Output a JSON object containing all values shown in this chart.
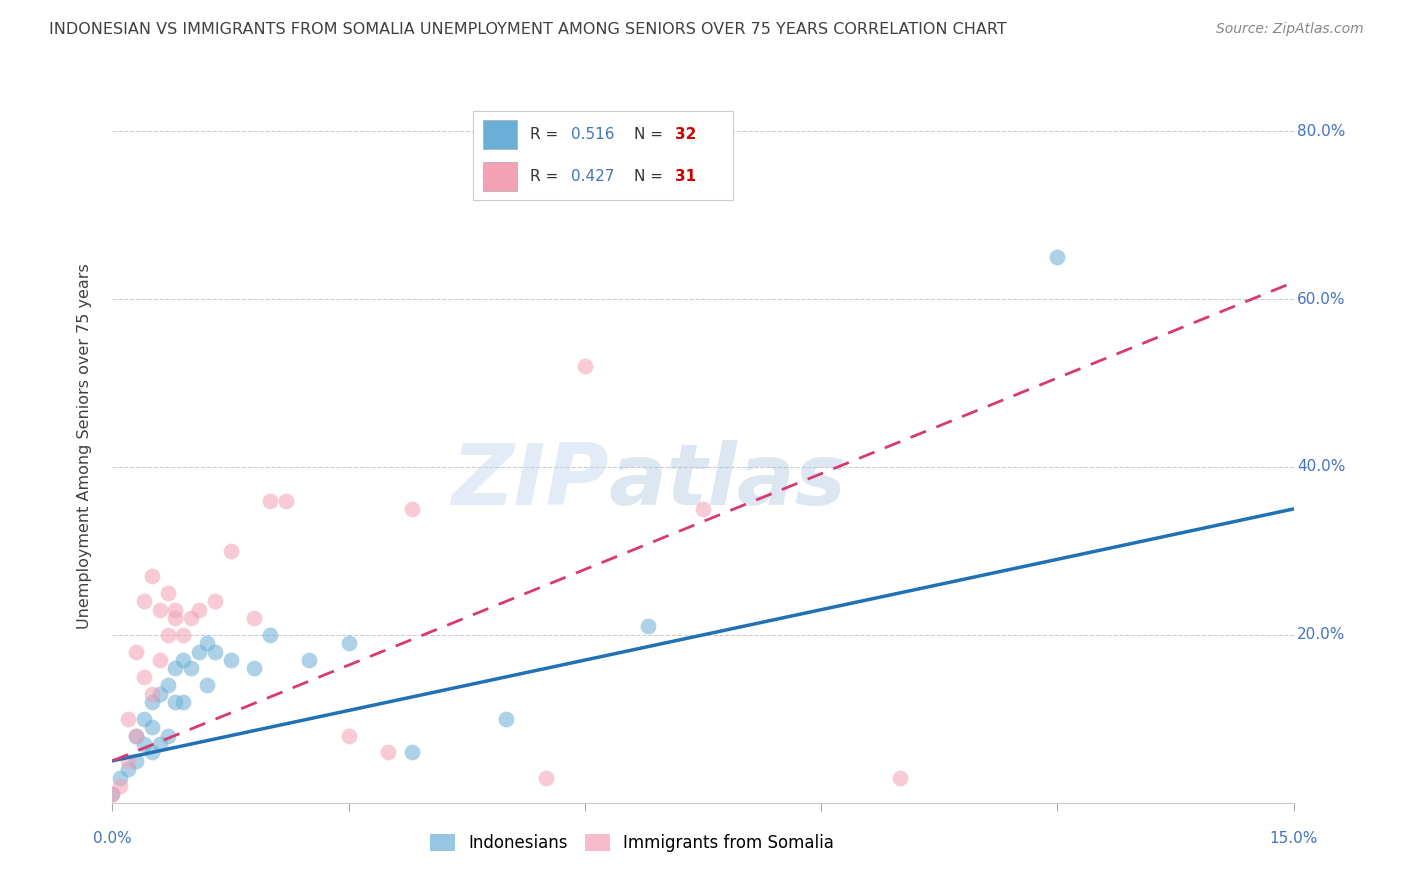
{
  "title": "INDONESIAN VS IMMIGRANTS FROM SOMALIA UNEMPLOYMENT AMONG SENIORS OVER 75 YEARS CORRELATION CHART",
  "source": "Source: ZipAtlas.com",
  "xlabel": "",
  "ylabel": "Unemployment Among Seniors over 75 years",
  "xlim": [
    0.0,
    0.15
  ],
  "ylim": [
    0.0,
    0.85
  ],
  "xticks": [
    0.0,
    0.03,
    0.06,
    0.09,
    0.12,
    0.15
  ],
  "yticks": [
    0.0,
    0.2,
    0.4,
    0.6,
    0.8
  ],
  "yticklabels": [
    "",
    "20.0%",
    "40.0%",
    "60.0%",
    "80.0%"
  ],
  "legend_color1": "#6baed6",
  "legend_color2": "#f4a0b5",
  "watermark_zip": "ZIP",
  "watermark_atlas": "atlas",
  "indonesian_color": "#6baed6",
  "somalia_color": "#f4a0b5",
  "trend_blue_color": "#2171b5",
  "trend_pink_color": "#d63a6e",
  "background_color": "#ffffff",
  "grid_color": "#cccccc",
  "tick_label_color": "#4472c4",
  "title_color": "#404040",
  "ylabel_color": "#404040",
  "indonesian_x": [
    0.0,
    0.001,
    0.002,
    0.003,
    0.003,
    0.004,
    0.004,
    0.005,
    0.005,
    0.005,
    0.006,
    0.006,
    0.007,
    0.007,
    0.008,
    0.008,
    0.009,
    0.009,
    0.01,
    0.011,
    0.012,
    0.012,
    0.013,
    0.015,
    0.018,
    0.02,
    0.025,
    0.03,
    0.038,
    0.05,
    0.068,
    0.12
  ],
  "indonesian_y": [
    0.01,
    0.03,
    0.04,
    0.05,
    0.08,
    0.07,
    0.1,
    0.06,
    0.09,
    0.12,
    0.07,
    0.13,
    0.08,
    0.14,
    0.12,
    0.16,
    0.12,
    0.17,
    0.16,
    0.18,
    0.14,
    0.19,
    0.18,
    0.17,
    0.16,
    0.2,
    0.17,
    0.19,
    0.06,
    0.1,
    0.21,
    0.65
  ],
  "somalia_x": [
    0.0,
    0.001,
    0.002,
    0.002,
    0.003,
    0.003,
    0.004,
    0.004,
    0.005,
    0.005,
    0.006,
    0.006,
    0.007,
    0.007,
    0.008,
    0.008,
    0.009,
    0.01,
    0.011,
    0.013,
    0.015,
    0.018,
    0.02,
    0.022,
    0.03,
    0.035,
    0.038,
    0.055,
    0.06,
    0.075,
    0.1
  ],
  "somalia_y": [
    0.01,
    0.02,
    0.05,
    0.1,
    0.08,
    0.18,
    0.15,
    0.24,
    0.13,
    0.27,
    0.17,
    0.23,
    0.2,
    0.25,
    0.22,
    0.23,
    0.2,
    0.22,
    0.23,
    0.24,
    0.3,
    0.22,
    0.36,
    0.36,
    0.08,
    0.06,
    0.35,
    0.03,
    0.52,
    0.35,
    0.03
  ],
  "dot_size": 130,
  "dot_alpha": 0.55,
  "blue_trend_x0": 0.0,
  "blue_trend_y0": 0.05,
  "blue_trend_x1": 0.15,
  "blue_trend_y1": 0.35,
  "pink_trend_x0": 0.0,
  "pink_trend_y0": 0.05,
  "pink_trend_x1": 0.15,
  "pink_trend_y1": 0.62
}
